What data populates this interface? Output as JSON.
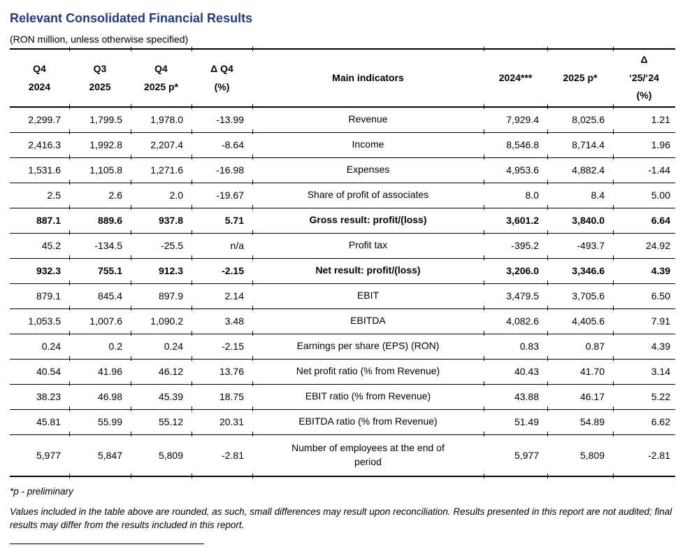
{
  "page": {
    "title": "Relevant Consolidated Financial Results",
    "subtitle": "(RON million, unless otherwise specified)",
    "title_color": "#1f3a8f"
  },
  "table": {
    "headers": [
      "Q4\n2024",
      "Q3\n2025",
      "Q4\n2025 p*",
      "Δ Q4\n(%)",
      "Main indicators",
      "2024***",
      "2025 p*",
      "Δ\n‘25/‘24\n(%)"
    ],
    "rows": [
      {
        "bold": false,
        "cells": [
          "2,299.7",
          "1,799.5",
          "1,978.0",
          "-13.99",
          "Revenue",
          "7,929.4",
          "8,025.6",
          "1.21"
        ]
      },
      {
        "bold": false,
        "cells": [
          "2,416.3",
          "1,992.8",
          "2,207.4",
          "-8.64",
          "Income",
          "8,546.8",
          "8,714.4",
          "1.96"
        ]
      },
      {
        "bold": false,
        "cells": [
          "1,531.6",
          "1,105.8",
          "1,271.6",
          "-16.98",
          "Expenses",
          "4,953.6",
          "4,882.4",
          "-1.44"
        ]
      },
      {
        "bold": false,
        "cells": [
          "2.5",
          "2.6",
          "2.0",
          "-19.67",
          "Share of profit of associates",
          "8.0",
          "8.4",
          "5.00"
        ]
      },
      {
        "bold": true,
        "cells": [
          "887.1",
          "889.6",
          "937.8",
          "5.71",
          "Gross result: profit/(loss)",
          "3,601.2",
          "3,840.0",
          "6.64"
        ]
      },
      {
        "bold": false,
        "cells": [
          "45.2",
          "-134.5",
          "-25.5",
          "n/a",
          "Profit tax",
          "-395.2",
          "-493.7",
          "24.92"
        ]
      },
      {
        "bold": true,
        "cells": [
          "932.3",
          "755.1",
          "912.3",
          "-2.15",
          "Net result: profit/(loss)",
          "3,206.0",
          "3,346.6",
          "4.39"
        ]
      },
      {
        "bold": false,
        "cells": [
          "879.1",
          "845.4",
          "897.9",
          "2.14",
          "EBIT",
          "3,479.5",
          "3,705.6",
          "6.50"
        ]
      },
      {
        "bold": false,
        "cells": [
          "1,053.5",
          "1,007.6",
          "1,090.2",
          "3.48",
          "EBITDA",
          "4,082.6",
          "4,405.6",
          "7.91"
        ]
      },
      {
        "bold": false,
        "cells": [
          "0.24",
          "0.2",
          "0.24",
          "-2.15",
          "Earnings per share (EPS) (RON)",
          "0.83",
          "0.87",
          "4.39"
        ]
      },
      {
        "bold": false,
        "cells": [
          "40.54",
          "41.96",
          "46.12",
          "13.76",
          "Net profit ratio (% from Revenue)",
          "40.43",
          "41.70",
          "3.14"
        ]
      },
      {
        "bold": false,
        "cells": [
          "38.23",
          "46.98",
          "45.39",
          "18.75",
          "EBIT ratio (% from Revenue)",
          "43.88",
          "46.17",
          "5.22"
        ]
      },
      {
        "bold": false,
        "cells": [
          "45.81",
          "55.99",
          "55.12",
          "20.31",
          "EBITDA ratio (% from Revenue)",
          "51.49",
          "54.89",
          "6.62"
        ]
      },
      {
        "bold": false,
        "cells": [
          "5,977",
          "5,847",
          "5,809",
          "-2.81",
          "Number of employees at the end of period",
          "5,977",
          "5,809",
          "-2.81"
        ]
      }
    ]
  },
  "footnotes": {
    "preliminary": "*p - preliminary",
    "disclaimer": "Values included in the table above are rounded, as such, small differences may result upon reconciliation. Results presented in this report are not audited; final results may differ from the results included in this report."
  }
}
